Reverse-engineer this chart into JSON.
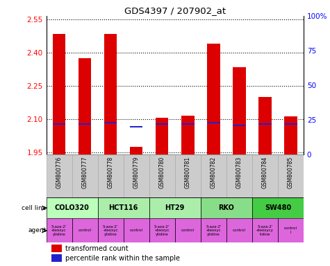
{
  "title": "GDS4397 / 207902_at",
  "samples": [
    "GSM800776",
    "GSM800777",
    "GSM800778",
    "GSM800779",
    "GSM800780",
    "GSM800781",
    "GSM800782",
    "GSM800783",
    "GSM800784",
    "GSM800785"
  ],
  "transformed_count": [
    2.485,
    2.375,
    2.485,
    1.975,
    2.105,
    2.115,
    2.44,
    2.335,
    2.2,
    2.11
  ],
  "percentile_rank": [
    22,
    22,
    23,
    20,
    22,
    22,
    23,
    21,
    22,
    22
  ],
  "percentile_max": 100,
  "ylim_left": [
    1.94,
    2.565
  ],
  "yticks_left": [
    1.95,
    2.1,
    2.25,
    2.4,
    2.55
  ],
  "yticks_right": [
    0,
    25,
    50,
    75,
    100
  ],
  "bar_color_red": "#dd0000",
  "bar_color_blue": "#2222cc",
  "cell_line_colors": [
    "#bbffbb",
    "#aaeeaa",
    "#aaeeaa",
    "#88dd88",
    "#44cc44"
  ],
  "cell_line_names": [
    "COLO320",
    "HCT116",
    "HT29",
    "RKO",
    "SW480"
  ],
  "cell_line_spans": [
    [
      0,
      2
    ],
    [
      2,
      4
    ],
    [
      4,
      6
    ],
    [
      6,
      8
    ],
    [
      8,
      10
    ]
  ],
  "agent_texts": [
    "5-aza-2'\n-deoxyc\nytidine",
    "control",
    "5-aza-2'\n-deoxyc\nytidine",
    "control",
    "5-aza-2'\n-deoxyc\nytidine",
    "control",
    "5-aza-2'\n-deoxyc\nytidine",
    "control",
    "5-aza-2'\n-deoxycy\ntidine",
    "control\nl"
  ],
  "agent_color": "#dd66dd",
  "legend_red": "transformed count",
  "legend_blue": "percentile rank within the sample",
  "cell_line_label": "cell line",
  "agent_label": "agent",
  "sample_bg_color": "#cccccc",
  "sample_border_color": "#aaaaaa"
}
